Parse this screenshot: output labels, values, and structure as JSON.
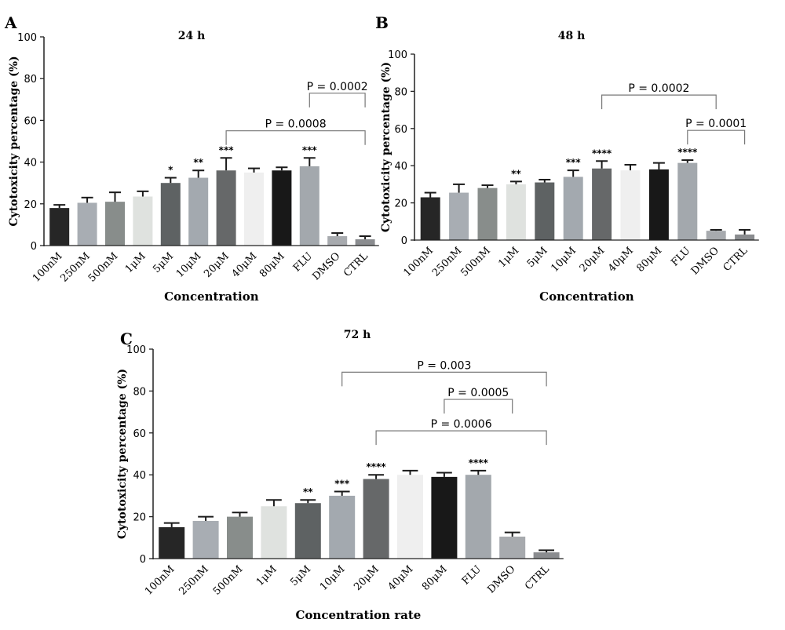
{
  "chart_data": [
    {
      "id": "A",
      "type": "bar",
      "panel_letter": "A",
      "title": "24 h",
      "xlabel": "Concentration",
      "ylabel": "Cytotoxicity percentage (%)",
      "ylim": [
        0,
        100
      ],
      "yticks": [
        "0",
        "20",
        "40",
        "60",
        "80",
        "100"
      ],
      "categories": [
        "100nM",
        "250nM",
        "500nM",
        "1μM",
        "5μM",
        "10μM",
        "20μM",
        "40μM",
        "80μM",
        "FLU",
        "DMSO",
        "CTRL"
      ],
      "values": [
        18,
        20.5,
        21,
        23.5,
        30,
        32.5,
        36,
        35,
        36,
        38,
        4.5,
        3
      ],
      "errors": [
        1.5,
        2.5,
        4.5,
        2.5,
        2.5,
        3.5,
        6,
        2,
        1.5,
        4,
        1.5,
        1.5
      ],
      "significance": [
        "",
        "",
        "",
        "",
        "*",
        "**",
        "***",
        "",
        "",
        "***",
        "",
        ""
      ],
      "colors": [
        "#262626",
        "#a8adb3",
        "#888d8b",
        "#dfe2df",
        "#5e6263",
        "#a3a9af",
        "#666869",
        "#efefef",
        "#181818",
        "#a3a8ad",
        "#a7aaae",
        "#8a8c8f"
      ],
      "brackets": [
        {
          "from": 9,
          "to": 11,
          "y": 73,
          "label": "P = 0.0002"
        },
        {
          "from": 6,
          "to": 11,
          "y": 55,
          "label": "P = 0.0008"
        }
      ]
    },
    {
      "id": "B",
      "type": "bar",
      "panel_letter": "B",
      "title": "48 h",
      "xlabel": "Concentration",
      "ylabel": "Cytotoxicity percentage (%)",
      "ylim": [
        0,
        100
      ],
      "yticks": [
        "0",
        "20",
        "40",
        "60",
        "80",
        "100"
      ],
      "categories": [
        "100nM",
        "250nM",
        "500nM",
        "1μM",
        "5μM",
        "10μM",
        "20μM",
        "40μM",
        "80μM",
        "FLU",
        "DMSO",
        "CTRL"
      ],
      "values": [
        23,
        25.5,
        28,
        30,
        31,
        34,
        38.5,
        37.5,
        38,
        41.5,
        5,
        3
      ],
      "errors": [
        2.5,
        4.5,
        1.5,
        1.5,
        1.5,
        3.5,
        4,
        3,
        3.5,
        1.5,
        0.5,
        2.5
      ],
      "significance": [
        "",
        "",
        "",
        "**",
        "",
        "***",
        "****",
        "",
        "",
        "****",
        "",
        ""
      ],
      "colors": [
        "#262626",
        "#a8adb3",
        "#888d8b",
        "#dfe2df",
        "#5e6263",
        "#a3a9af",
        "#666869",
        "#efefef",
        "#181818",
        "#a3a8ad",
        "#a7aaae",
        "#8a8c8f"
      ],
      "brackets": [
        {
          "from": 6,
          "to": 10,
          "y": 78,
          "label": "P = 0.0002"
        },
        {
          "from": 9,
          "to": 11,
          "y": 59,
          "label": "P = 0.0001"
        }
      ]
    },
    {
      "id": "C",
      "type": "bar",
      "panel_letter": "C",
      "title": "72 h",
      "xlabel": "Concentration rate",
      "ylabel": "Cytotoxicity percentage (%)",
      "ylim": [
        0,
        100
      ],
      "yticks": [
        "0",
        "20",
        "40",
        "60",
        "80",
        "100"
      ],
      "categories": [
        "100nM",
        "250nM",
        "500nM",
        "1μM",
        "5μM",
        "10μM",
        "20μM",
        "40μM",
        "80μM",
        "FLU",
        "DMSO",
        "CTRL"
      ],
      "values": [
        15,
        18,
        20,
        25,
        26.5,
        30,
        38,
        40,
        39,
        40,
        10.5,
        3
      ],
      "errors": [
        2,
        2,
        2,
        3,
        1.5,
        2,
        2,
        2,
        2,
        2,
        2,
        1
      ],
      "significance": [
        "",
        "",
        "",
        "",
        "**",
        "***",
        "****",
        "",
        "",
        "****",
        "",
        ""
      ],
      "colors": [
        "#262626",
        "#a8adb3",
        "#888d8b",
        "#dfe2df",
        "#5e6263",
        "#a3a9af",
        "#666869",
        "#efefef",
        "#181818",
        "#a3a8ad",
        "#a7aaae",
        "#8a8c8f"
      ],
      "brackets": [
        {
          "from": 5,
          "to": 11,
          "y": 89,
          "label": "P = 0.003"
        },
        {
          "from": 8,
          "to": 10,
          "y": 76,
          "label": "P = 0.0005"
        },
        {
          "from": 6,
          "to": 11,
          "y": 61,
          "label": "P = 0.0006"
        }
      ]
    }
  ]
}
